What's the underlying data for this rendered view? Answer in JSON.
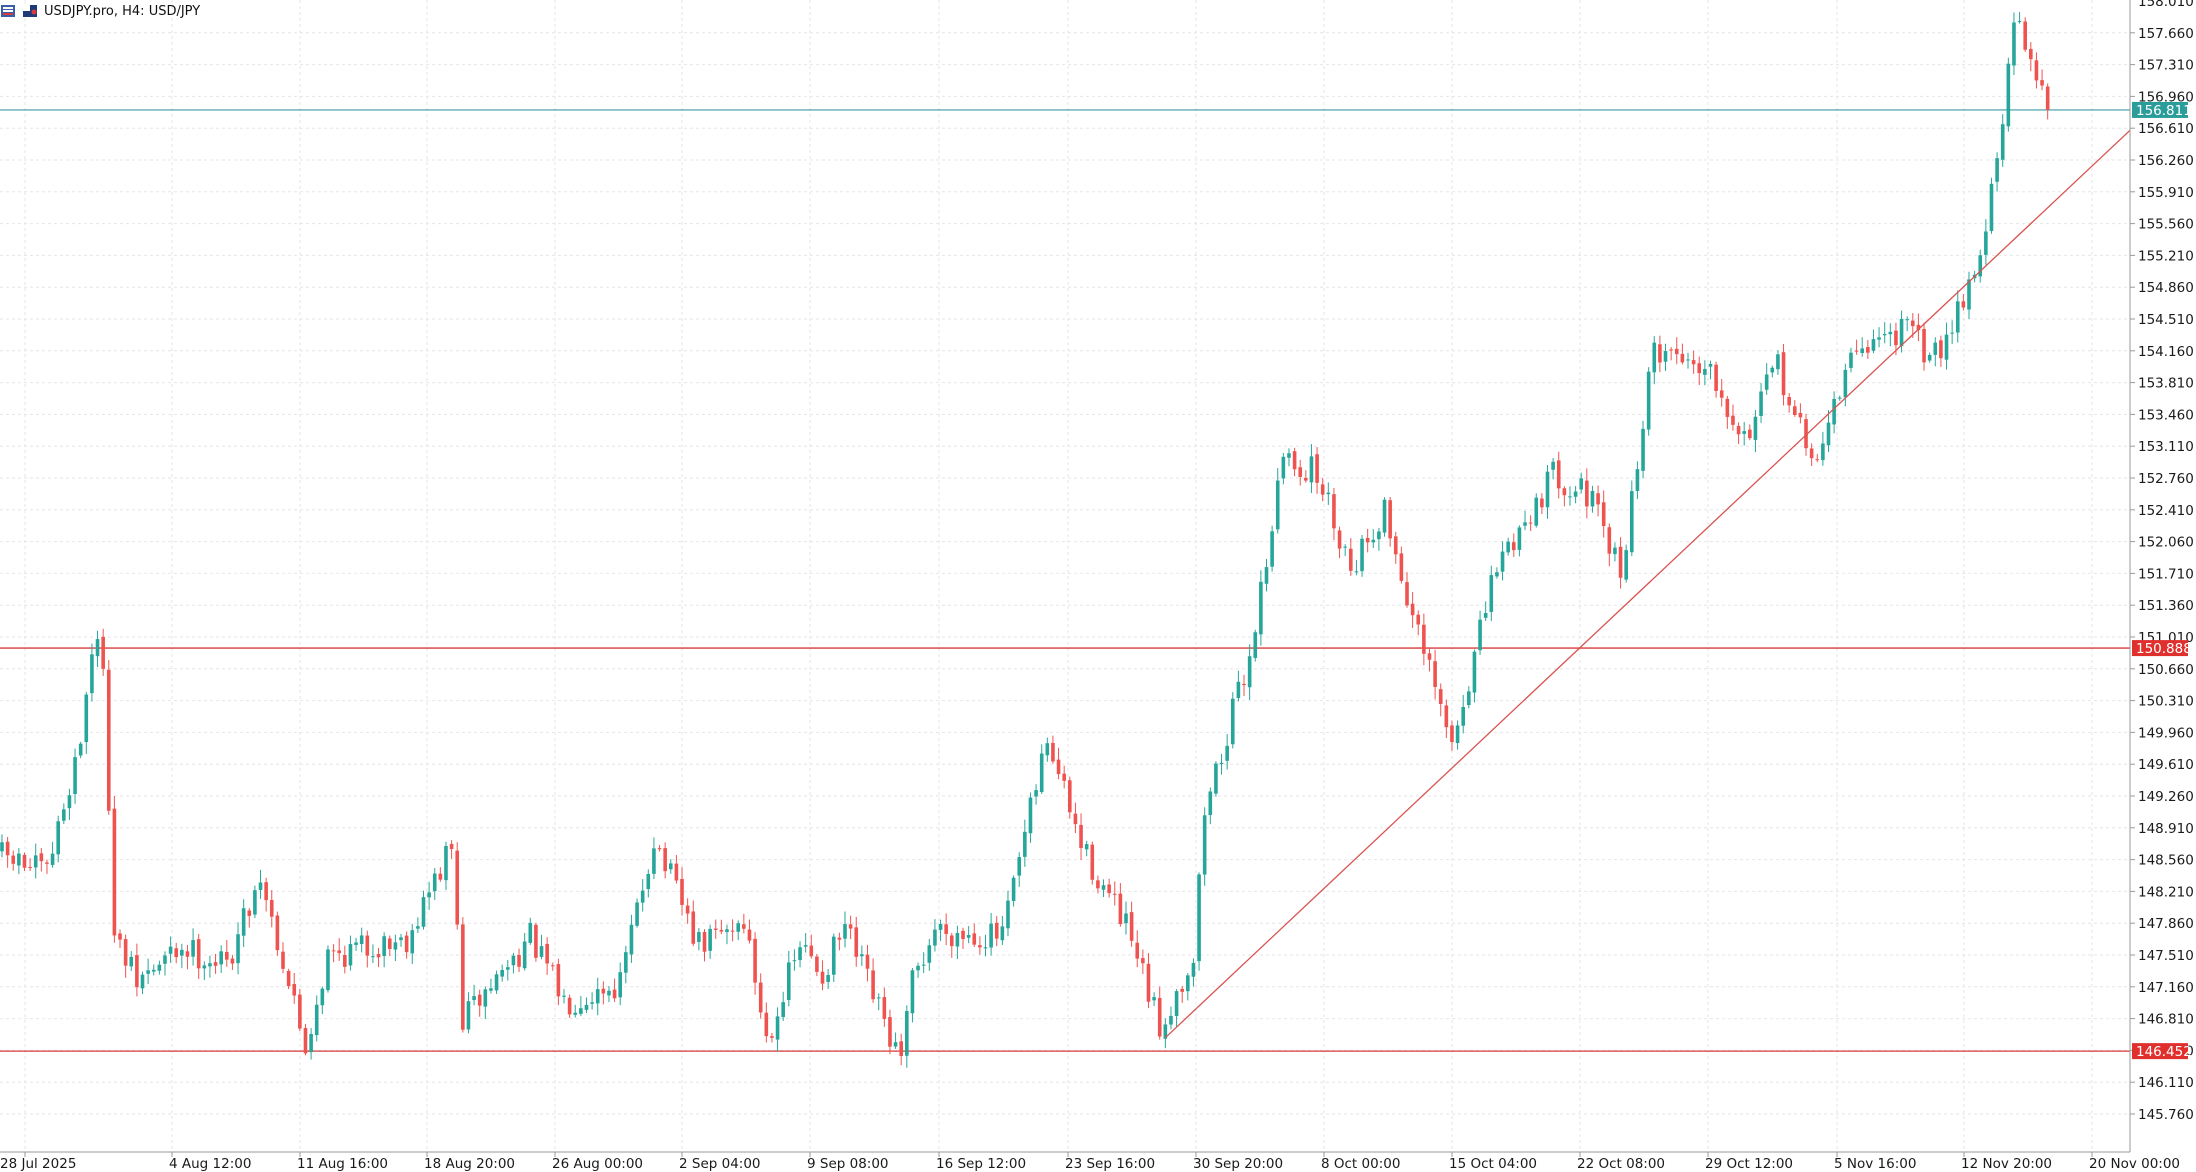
{
  "header": {
    "symbol_text": "USDJPY.pro, H4:  USD/JPY"
  },
  "colors": {
    "bull": "#26a69a",
    "bear": "#ef5350",
    "grid": "#e6e6ea",
    "axis": "#9a9a9a",
    "level_line": "#d63b3b",
    "current_line": "#3c9aa3",
    "trendline": "#d9534f",
    "badge_red": "#e0302e",
    "badge_teal": "#2a9d9a"
  },
  "chart_data": {
    "type": "candlestick",
    "symbol": "USDJPY.pro",
    "timeframe": "H4",
    "y_ticks": [
      "157.660",
      "157.310",
      "156.960",
      "156.610",
      "156.260",
      "155.910",
      "155.560",
      "155.210",
      "154.860",
      "154.510",
      "154.160",
      "153.810",
      "153.460",
      "153.110",
      "152.760",
      "152.410",
      "152.060",
      "151.710",
      "151.360",
      "151.010",
      "150.660",
      "150.310",
      "149.960",
      "149.610",
      "149.260",
      "148.910",
      "148.560",
      "148.210",
      "147.860",
      "147.510",
      "147.160",
      "146.810",
      "146.460",
      "146.110",
      "145.760"
    ],
    "y_top_partial": "158.010",
    "ylim": [
      145.55,
      158.1
    ],
    "x_ticks": [
      "28 Jul 2025",
      "4 Aug 12:00",
      "11 Aug 16:00",
      "18 Aug 20:00",
      "26 Aug 00:00",
      "2 Sep 04:00",
      "9 Sep 08:00",
      "16 Sep 12:00",
      "23 Sep 16:00",
      "30 Sep 20:00",
      "8 Oct 00:00",
      "15 Oct 04:00",
      "22 Oct 08:00",
      "29 Oct 12:00",
      "5 Nov 16:00",
      "12 Nov 20:00",
      "20 Nov 00:00"
    ],
    "horizontal_levels": [
      {
        "price": 150.888,
        "label": "150.888",
        "role": "resistance"
      },
      {
        "price": 146.452,
        "label": "146.452",
        "role": "support"
      }
    ],
    "current_price": {
      "price": 156.811,
      "label": "156.811"
    },
    "trendline": {
      "from": {
        "bar": 207,
        "price": 146.6
      },
      "to": {
        "bar": 372,
        "price": 156.2
      }
    },
    "waypoints": [
      [
        0,
        148.6
      ],
      [
        8,
        148.4
      ],
      [
        14,
        149.9
      ],
      [
        16,
        150.9
      ],
      [
        18,
        150.8
      ],
      [
        20,
        147.7
      ],
      [
        24,
        147.2
      ],
      [
        32,
        147.6
      ],
      [
        40,
        147.4
      ],
      [
        46,
        148.4
      ],
      [
        54,
        146.5
      ],
      [
        58,
        147.5
      ],
      [
        72,
        147.7
      ],
      [
        80,
        148.7
      ],
      [
        82,
        146.8
      ],
      [
        94,
        147.7
      ],
      [
        100,
        147.0
      ],
      [
        110,
        147.2
      ],
      [
        116,
        148.8
      ],
      [
        124,
        147.6
      ],
      [
        132,
        147.9
      ],
      [
        136,
        146.6
      ],
      [
        142,
        147.6
      ],
      [
        146,
        147.3
      ],
      [
        150,
        147.8
      ],
      [
        154,
        147.2
      ],
      [
        160,
        146.3
      ],
      [
        162,
        147.2
      ],
      [
        166,
        147.8
      ],
      [
        178,
        147.7
      ],
      [
        186,
        149.9
      ],
      [
        192,
        148.7
      ],
      [
        200,
        147.8
      ],
      [
        206,
        146.7
      ],
      [
        212,
        147.5
      ],
      [
        214,
        149.1
      ],
      [
        222,
        150.8
      ],
      [
        228,
        153.0
      ],
      [
        234,
        152.8
      ],
      [
        240,
        151.8
      ],
      [
        246,
        152.4
      ],
      [
        252,
        151.0
      ],
      [
        258,
        149.8
      ],
      [
        262,
        150.8
      ],
      [
        266,
        151.8
      ],
      [
        276,
        152.8
      ],
      [
        282,
        152.6
      ],
      [
        288,
        151.7
      ],
      [
        294,
        154.2
      ],
      [
        304,
        154.0
      ],
      [
        310,
        153.2
      ],
      [
        316,
        154.0
      ],
      [
        322,
        152.9
      ],
      [
        330,
        154.2
      ],
      [
        338,
        154.4
      ],
      [
        344,
        154.1
      ],
      [
        352,
        155.2
      ],
      [
        356,
        156.6
      ],
      [
        358,
        157.8
      ],
      [
        362,
        157.3
      ],
      [
        364,
        156.811
      ]
    ]
  }
}
